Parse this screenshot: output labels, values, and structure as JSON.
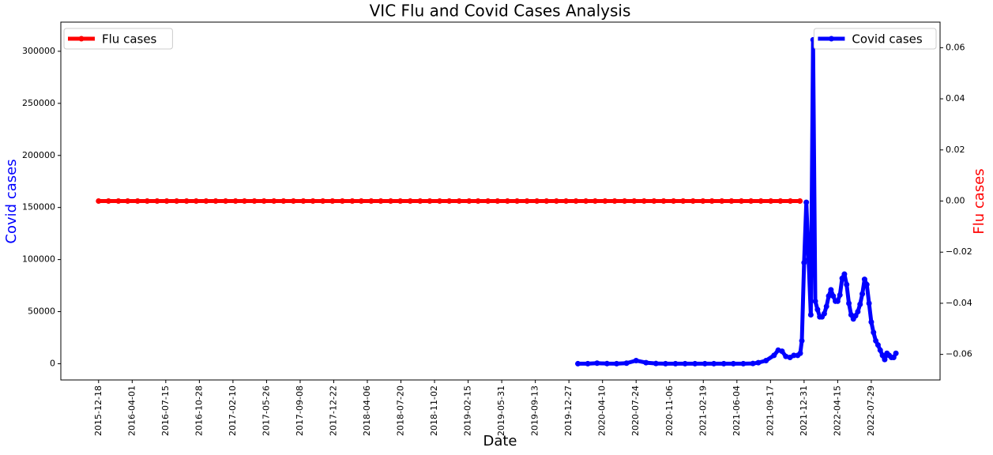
{
  "chart_data": {
    "type": "line",
    "title": "VIC Flu and Covid Cases Analysis",
    "xlabel": "Date",
    "ylabel": "Covid cases",
    "y2label": "Flu cases",
    "xlim": [
      "2015-08-22",
      "2023-03-01"
    ],
    "xticks": [
      "2015-12-18",
      "2016-04-01",
      "2016-07-15",
      "2016-10-28",
      "2017-02-10",
      "2017-05-26",
      "2017-09-08",
      "2017-12-22",
      "2018-04-06",
      "2018-07-20",
      "2018-11-02",
      "2019-02-15",
      "2019-05-31",
      "2019-09-13",
      "2019-12-27",
      "2020-04-10",
      "2020-07-24",
      "2020-11-06",
      "2021-02-19",
      "2021-06-04",
      "2021-09-17",
      "2021-12-31",
      "2022-04-15",
      "2022-07-29"
    ],
    "ylim": [
      -15600,
      328000
    ],
    "yticks": [
      0,
      50000,
      100000,
      150000,
      200000,
      250000,
      300000
    ],
    "y2lim": [
      -0.07,
      0.07
    ],
    "y2ticks": [
      {
        "value": -0.06,
        "label": "−0.06"
      },
      {
        "value": -0.04,
        "label": "−0.04"
      },
      {
        "value": -0.02,
        "label": "−0.02"
      },
      {
        "value": 0,
        "label": "0.00"
      },
      {
        "value": 0.02,
        "label": "0.02"
      },
      {
        "value": 0.04,
        "label": "0.04"
      },
      {
        "value": 0.06,
        "label": "0.06"
      }
    ],
    "series": [
      {
        "name": "Covid cases",
        "color": "#0000ff",
        "axis": "y",
        "legend": "upper right",
        "x": [
          "2020-01-24",
          "2020-02-24",
          "2020-03-24",
          "2020-04-24",
          "2020-05-24",
          "2020-06-24",
          "2020-07-24",
          "2020-08-24",
          "2020-09-24",
          "2020-10-24",
          "2020-11-24",
          "2020-12-24",
          "2021-01-24",
          "2021-02-24",
          "2021-03-24",
          "2021-04-24",
          "2021-05-24",
          "2021-06-24",
          "2021-07-24",
          "2021-08-10",
          "2021-09-03",
          "2021-09-28",
          "2021-10-11",
          "2021-10-23",
          "2021-11-04",
          "2021-11-17",
          "2021-11-29",
          "2021-12-11",
          "2021-12-19",
          "2021-12-24",
          "2021-12-31",
          "2022-01-07",
          "2022-01-14",
          "2022-01-21",
          "2022-01-28",
          "2022-02-04",
          "2022-02-11",
          "2022-02-18",
          "2022-02-25",
          "2022-03-04",
          "2022-03-11",
          "2022-03-18",
          "2022-03-25",
          "2022-04-01",
          "2022-04-08",
          "2022-04-15",
          "2022-04-22",
          "2022-04-29",
          "2022-05-06",
          "2022-05-13",
          "2022-05-20",
          "2022-05-27",
          "2022-06-03",
          "2022-06-10",
          "2022-06-17",
          "2022-06-24",
          "2022-07-01",
          "2022-07-08",
          "2022-07-15",
          "2022-07-22",
          "2022-07-29",
          "2022-08-05",
          "2022-08-12",
          "2022-08-19",
          "2022-08-26",
          "2022-09-02",
          "2022-09-09",
          "2022-09-16",
          "2022-09-23",
          "2022-09-30",
          "2022-10-07",
          "2022-10-14"
        ],
        "values": [
          0,
          0,
          500,
          100,
          0,
          500,
          3000,
          1000,
          200,
          0,
          0,
          0,
          0,
          0,
          0,
          0,
          0,
          0,
          200,
          1000,
          3000,
          8000,
          13000,
          12000,
          7000,
          6000,
          8000,
          8000,
          10000,
          22000,
          97000,
          155000,
          100000,
          47000,
          311000,
          60000,
          52000,
          45000,
          45000,
          48000,
          55000,
          65000,
          71000,
          65000,
          60000,
          60000,
          66000,
          82000,
          86000,
          76000,
          58000,
          47000,
          43000,
          46000,
          50000,
          57000,
          67000,
          81000,
          76000,
          58000,
          40000,
          30000,
          22000,
          18000,
          13000,
          8000,
          4000,
          10000,
          8000,
          6000,
          6000,
          10000
        ]
      },
      {
        "name": "Flu cases",
        "color": "#ff0000",
        "axis": "y2",
        "legend": "upper left",
        "x": [
          "2015-12-18",
          "2016-01-18",
          "2016-02-18",
          "2016-03-18",
          "2016-04-18",
          "2016-05-18",
          "2016-06-18",
          "2016-07-18",
          "2016-08-18",
          "2016-09-18",
          "2016-10-18",
          "2016-11-18",
          "2016-12-18",
          "2017-01-18",
          "2017-02-18",
          "2017-03-18",
          "2017-04-18",
          "2017-05-18",
          "2017-06-18",
          "2017-07-18",
          "2017-08-18",
          "2017-09-18",
          "2017-10-18",
          "2017-11-18",
          "2017-12-18",
          "2018-01-18",
          "2018-02-18",
          "2018-03-18",
          "2018-04-18",
          "2018-05-18",
          "2018-06-18",
          "2018-07-18",
          "2018-08-18",
          "2018-09-18",
          "2018-10-18",
          "2018-11-18",
          "2018-12-18",
          "2019-01-18",
          "2019-02-18",
          "2019-03-18",
          "2019-04-18",
          "2019-05-18",
          "2019-06-18",
          "2019-07-18",
          "2019-08-18",
          "2019-09-18",
          "2019-10-18",
          "2019-11-18",
          "2019-12-18",
          "2020-01-18",
          "2020-02-18",
          "2020-03-18",
          "2020-04-18",
          "2020-05-18",
          "2020-06-18",
          "2020-07-18",
          "2020-08-18",
          "2020-09-18",
          "2020-10-18",
          "2020-11-18",
          "2020-12-18",
          "2021-01-18",
          "2021-02-18",
          "2021-03-18",
          "2021-04-18",
          "2021-05-18",
          "2021-06-18",
          "2021-07-18",
          "2021-08-18",
          "2021-09-18",
          "2021-10-18",
          "2021-11-18",
          "2021-12-18"
        ],
        "values": [
          0,
          0,
          0,
          0,
          0,
          0,
          0,
          0,
          0,
          0,
          0,
          0,
          0,
          0,
          0,
          0,
          0,
          0,
          0,
          0,
          0,
          0,
          0,
          0,
          0,
          0,
          0,
          0,
          0,
          0,
          0,
          0,
          0,
          0,
          0,
          0,
          0,
          0,
          0,
          0,
          0,
          0,
          0,
          0,
          0,
          0,
          0,
          0,
          0,
          0,
          0,
          0,
          0,
          0,
          0,
          0,
          0,
          0,
          0,
          0,
          0,
          0,
          0,
          0,
          0,
          0,
          0,
          0,
          0,
          0,
          0,
          0,
          0
        ]
      }
    ]
  }
}
